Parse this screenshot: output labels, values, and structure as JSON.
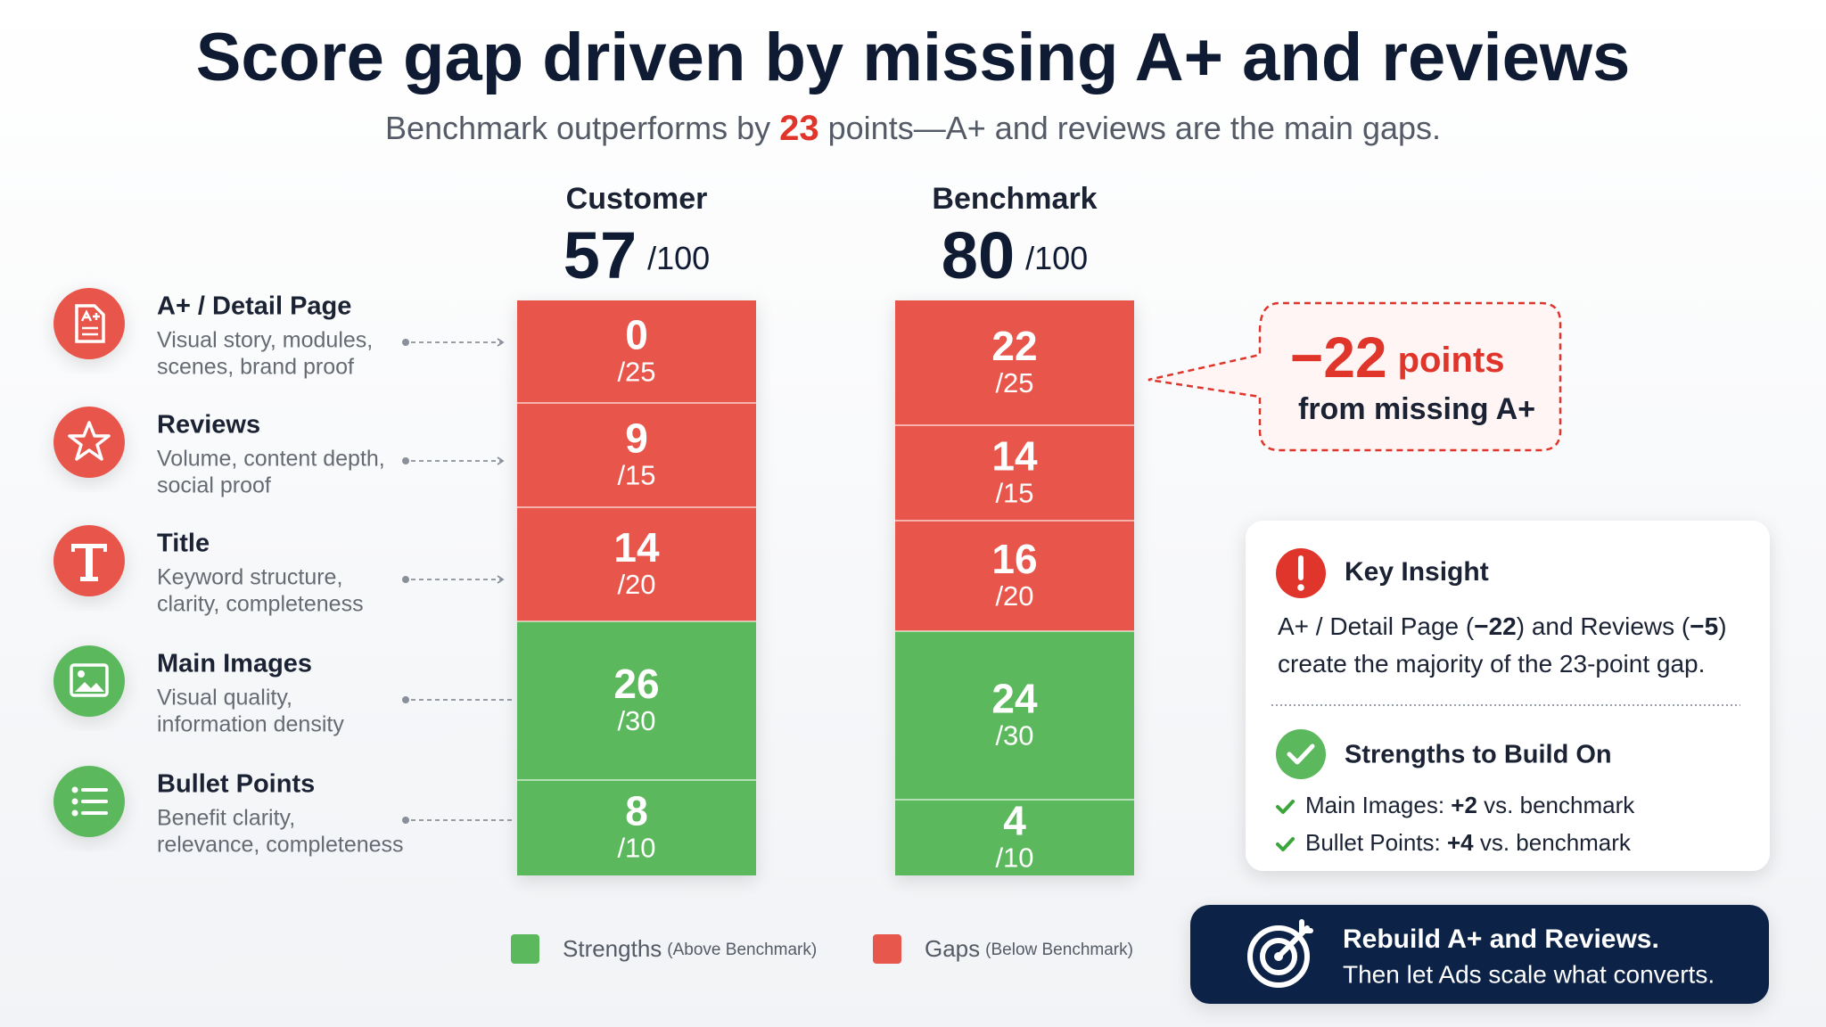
{
  "title": "Score gap driven by missing A+ and reviews",
  "subtitle": {
    "before": "Benchmark outperforms by ",
    "highlight": "23",
    "after": " points—A+ and reviews are the main gaps."
  },
  "columns": [
    {
      "name": "Customer",
      "score": 57,
      "total": "/100",
      "segments": [
        {
          "score": 0,
          "max": "/25",
          "color": "#e8574b"
        },
        {
          "score": 9,
          "max": "/15",
          "color": "#e8574b"
        },
        {
          "score": 14,
          "max": "/20",
          "color": "#e8574b"
        },
        {
          "score": 26,
          "max": "/30",
          "color": "#5cb85c"
        },
        {
          "score": 8,
          "max": "/10",
          "color": "#5cb85c"
        }
      ]
    },
    {
      "name": "Benchmark",
      "score": 80,
      "total": "/100",
      "segments": [
        {
          "score": 22,
          "max": "/25",
          "color": "#e8574b"
        },
        {
          "score": 14,
          "max": "/15",
          "color": "#e8574b"
        },
        {
          "score": 16,
          "max": "/20",
          "color": "#e8574b"
        },
        {
          "score": 24,
          "max": "/30",
          "color": "#5cb85c"
        },
        {
          "score": 4,
          "max": "/10",
          "color": "#5cb85c"
        }
      ]
    }
  ],
  "categories": [
    {
      "title": "A+ / Detail Page",
      "description": [
        "Visual story, modules,",
        "scenes, brand proof"
      ]
    },
    {
      "title": "Reviews",
      "description": [
        "Volume, content depth,",
        "social proof"
      ]
    },
    {
      "title": "Title",
      "description": [
        "Keyword structure,",
        "clarity, completeness"
      ]
    },
    {
      "title": "Main Images",
      "description": [
        "Visual quality,",
        "information density"
      ]
    },
    {
      "title": "Bullet Points",
      "description": [
        "Benefit clarity,",
        "relevance, completeness"
      ]
    }
  ],
  "callout": {
    "value": "−22",
    "unit": "points",
    "text": "from missing A+"
  },
  "insight": {
    "title": "Key Insight",
    "body": [
      [
        "A+ / Detail Page (",
        "−22",
        ") and Reviews (",
        "−5",
        ")"
      ],
      [
        "create the majority of the 23-point gap."
      ]
    ],
    "strengths_title": "Strengths to Build On",
    "strengths": [
      [
        "Main Images:  ",
        "+2",
        " vs. benchmark"
      ],
      [
        "Bullet Points:  ",
        "+4",
        " vs. benchmark"
      ]
    ]
  },
  "cta": [
    "Rebuild A+ and Reviews.",
    "Then let Ads scale what converts."
  ],
  "legend": [
    {
      "label": "Strengths",
      "note": "(Above Benchmark)",
      "color": "#5cb85c"
    },
    {
      "label": "Gaps",
      "note": "(Below Benchmark)",
      "color": "#e8574b"
    }
  ]
}
